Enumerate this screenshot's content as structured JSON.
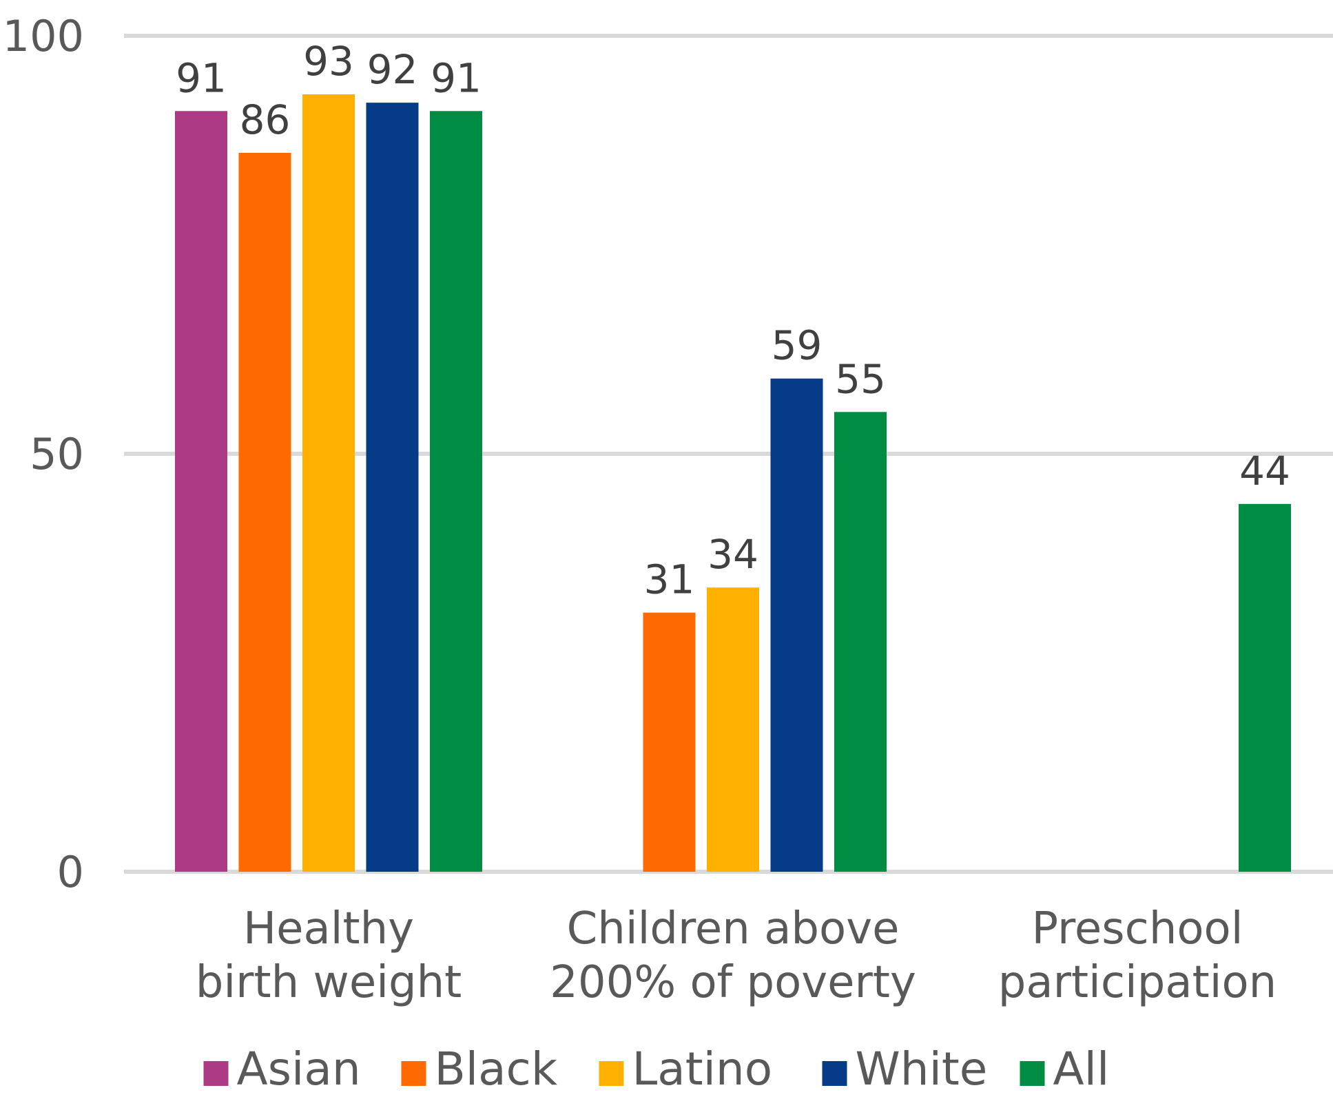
{
  "chart_data": {
    "type": "bar",
    "categories": [
      [
        "Healthy",
        "birth weight"
      ],
      [
        "Children above",
        "200% of poverty"
      ],
      [
        "Preschool",
        "participation"
      ]
    ],
    "series": [
      {
        "name": "Asian",
        "color": "#ad3a84",
        "values": [
          91,
          null,
          null
        ]
      },
      {
        "name": "Black",
        "color": "#ff6a00",
        "values": [
          86,
          31,
          null
        ]
      },
      {
        "name": "Latino",
        "color": "#ffb000",
        "values": [
          93,
          34,
          null
        ]
      },
      {
        "name": "White",
        "color": "#063b87",
        "values": [
          92,
          59,
          null
        ]
      },
      {
        "name": "All",
        "color": "#008c42",
        "values": [
          91,
          55,
          44
        ]
      }
    ],
    "ylim": [
      0,
      100
    ],
    "yticks": [
      0,
      50,
      100
    ],
    "grid": true,
    "legend_position": "bottom",
    "title": "",
    "xlabel": "",
    "ylabel": ""
  }
}
